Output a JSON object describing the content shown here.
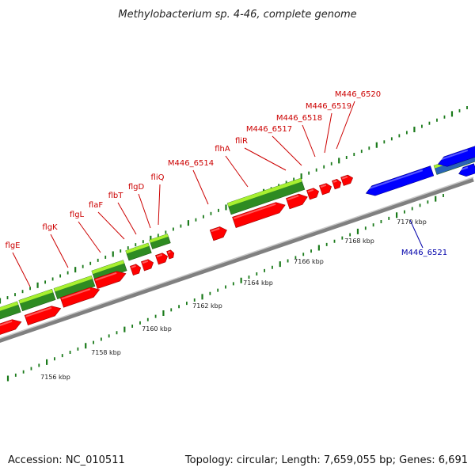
{
  "title": "Methylobacterium sp. 4-46, complete genome",
  "footer": {
    "accession": "Accession: NC_010511",
    "topology": "Topology: circular; Length: 7,659,055 bp; Genes: 6,691"
  },
  "colors": {
    "gene_fwd": "#ff0000",
    "gene_rev": "#0000ff",
    "feature_dark": "#2e8b22",
    "feature_light": "#a8f030",
    "backbone": "#808080",
    "tick": "#1a7a1a",
    "label_fwd": "#cc0000",
    "label_rev": "#0000aa"
  },
  "kbp_labels": [
    "7156 kbp",
    "7158 kbp",
    "7160 kbp",
    "7162 kbp",
    "7164 kbp",
    "7166 kbp",
    "7168 kbp",
    "7170 kbp"
  ],
  "gene_labels": [
    {
      "text": "flgE",
      "strand": "fwd"
    },
    {
      "text": "flgK",
      "strand": "fwd"
    },
    {
      "text": "flgL",
      "strand": "fwd"
    },
    {
      "text": "flaF",
      "strand": "fwd"
    },
    {
      "text": "flbT",
      "strand": "fwd"
    },
    {
      "text": "flgD",
      "strand": "fwd"
    },
    {
      "text": "fliQ",
      "strand": "fwd"
    },
    {
      "text": "M446_6514",
      "strand": "fwd"
    },
    {
      "text": "flhA",
      "strand": "fwd"
    },
    {
      "text": "fliR",
      "strand": "fwd"
    },
    {
      "text": "M446_6517",
      "strand": "fwd"
    },
    {
      "text": "M446_6518",
      "strand": "fwd"
    },
    {
      "text": "M446_6519",
      "strand": "fwd"
    },
    {
      "text": "M446_6520",
      "strand": "fwd"
    },
    {
      "text": "M446_6521",
      "strand": "rev"
    }
  ]
}
